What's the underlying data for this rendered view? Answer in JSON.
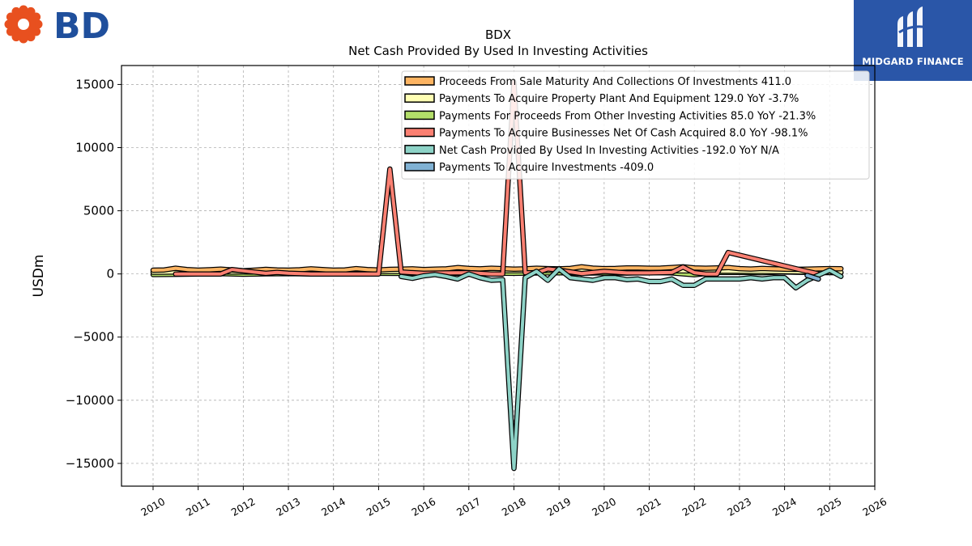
{
  "logos": {
    "left_text": "BD",
    "left_color": "#1f4f9c",
    "left_mark_color": "#e8501f",
    "right_text": "MIDGARD FINANCE",
    "right_bg": "#2a56a8"
  },
  "chart_data": {
    "type": "line",
    "title": "BDX",
    "subtitle": "Net Cash Provided By Used In Investing Activities",
    "xlabel": "",
    "ylabel": "USDm",
    "xlim": [
      2009.3,
      2026.0
    ],
    "ylim": [
      -16800,
      16500
    ],
    "x_ticks": [
      "2010",
      "2011",
      "2012",
      "2013",
      "2014",
      "2015",
      "2016",
      "2017",
      "2018",
      "2019",
      "2020",
      "2021",
      "2022",
      "2023",
      "2024",
      "2025",
      "2026"
    ],
    "y_ticks": [
      15000,
      10000,
      5000,
      0,
      -5000,
      -10000,
      -15000
    ],
    "y_tick_labels": [
      "15000",
      "10000",
      "5000",
      "0",
      "−5000",
      "−10000",
      "−15000"
    ],
    "grid": true,
    "legend_position": "top-right",
    "series": [
      {
        "name": "Proceeds From Sale Maturity And Collections Of Investments",
        "legend": "Proceeds From Sale Maturity And Collections Of Investments  411.0",
        "color": "#fdb462",
        "x": [
          2010.0,
          2010.25,
          2010.5,
          2010.75,
          2011.0,
          2011.25,
          2011.5,
          2011.75,
          2012.0,
          2012.25,
          2012.5,
          2012.75,
          2013.0,
          2013.25,
          2013.5,
          2013.75,
          2014.0,
          2014.25,
          2014.5,
          2014.75,
          2015.0,
          2015.25,
          2015.5,
          2015.75,
          2016.0,
          2016.25,
          2016.5,
          2016.75,
          2017.0,
          2017.25,
          2017.5,
          2017.75,
          2018.0,
          2018.25,
          2018.5,
          2018.75,
          2019.0,
          2019.25,
          2019.5,
          2019.75,
          2020.0,
          2020.25,
          2020.5,
          2020.75,
          2021.0,
          2021.25,
          2021.5,
          2021.75,
          2022.0,
          2022.25,
          2022.5,
          2022.75,
          2023.0,
          2023.25,
          2023.5,
          2023.75,
          2024.0,
          2024.25,
          2024.5,
          2024.75,
          2025.0,
          2025.25
        ],
        "y": [
          300,
          320,
          450,
          350,
          300,
          330,
          380,
          320,
          250,
          300,
          360,
          310,
          300,
          330,
          400,
          340,
          300,
          320,
          420,
          350,
          320,
          360,
          380,
          400,
          350,
          380,
          400,
          500,
          430,
          400,
          450,
          420,
          380,
          400,
          450,
          420,
          400,
          430,
          560,
          460,
          420,
          430,
          470,
          480,
          450,
          460,
          500,
          560,
          480,
          450,
          470,
          510,
          420,
          390,
          430,
          400,
          380,
          360,
          380,
          400,
          420,
          411
        ]
      },
      {
        "name": "Payments To Acquire Property Plant And Equipment",
        "legend": "Payments To Acquire Property Plant And Equipment  129.0 YoY -3.7%",
        "color": "#ffffb3",
        "x": [
          2010.0,
          2010.5,
          2011.0,
          2011.5,
          2012.0,
          2012.5,
          2013.0,
          2013.5,
          2014.0,
          2014.5,
          2015.0,
          2015.5,
          2016.0,
          2016.5,
          2017.0,
          2017.5,
          2018.0,
          2018.5,
          2019.0,
          2019.5,
          2020.0,
          2020.5,
          2021.0,
          2021.5,
          2022.0,
          2022.5,
          2023.0,
          2023.5,
          2024.0,
          2024.5,
          2025.0,
          2025.25
        ],
        "y": [
          140,
          150,
          150,
          160,
          150,
          160,
          170,
          160,
          160,
          170,
          180,
          200,
          210,
          230,
          240,
          250,
          260,
          270,
          280,
          290,
          300,
          270,
          260,
          250,
          240,
          230,
          220,
          200,
          180,
          160,
          140,
          129
        ]
      },
      {
        "name": "Payments For Proceeds From Other Investing Activities",
        "legend": "Payments For Proceeds From Other Investing Activities  85.0 YoY -21.3%",
        "color": "#b3de69",
        "x": [
          2010.0,
          2010.25,
          2010.5,
          2011.0,
          2011.5,
          2012.0,
          2012.5,
          2013.0,
          2013.5,
          2014.0,
          2014.5,
          2015.0,
          2015.5,
          2016.0,
          2016.5,
          2017.0,
          2017.5,
          2018.0,
          2018.5,
          2019.0,
          2019.5,
          2020.0,
          2020.5,
          2021.0,
          2021.5,
          2022.0,
          2022.5,
          2023.0,
          2023.5,
          2024.0,
          2024.5,
          2025.0,
          2025.25
        ],
        "y": [
          -50,
          -40,
          -30,
          0,
          20,
          -20,
          10,
          30,
          0,
          10,
          20,
          50,
          40,
          30,
          60,
          40,
          70,
          50,
          80,
          100,
          60,
          90,
          70,
          110,
          80,
          -60,
          120,
          130,
          100,
          150,
          120,
          108,
          85
        ]
      },
      {
        "name": "Payments To Acquire Businesses Net Of Cash Acquired",
        "legend": "Payments To Acquire Businesses Net Of Cash Acquired  8.0 YoY -98.1%",
        "color": "#fb8072",
        "x": [
          2010.5,
          2011.0,
          2011.5,
          2011.75,
          2012.0,
          2012.5,
          2012.75,
          2013.0,
          2013.5,
          2014.0,
          2014.5,
          2014.75,
          2015.0,
          2015.25,
          2015.5,
          2016.0,
          2016.5,
          2017.0,
          2017.5,
          2017.75,
          2018.0,
          2018.25,
          2018.5,
          2018.75,
          2019.0,
          2019.5,
          2020.0,
          2020.5,
          2021.0,
          2021.5,
          2021.75,
          2022.0,
          2022.25,
          2022.5,
          2022.75,
          2024.5,
          2024.75
        ],
        "y": [
          0,
          0,
          0,
          350,
          250,
          50,
          120,
          60,
          0,
          0,
          0,
          0,
          0,
          8300,
          150,
          50,
          80,
          100,
          0,
          0,
          15200,
          100,
          80,
          400,
          300,
          30,
          200,
          80,
          80,
          120,
          550,
          100,
          0,
          0,
          1700,
          200,
          8
        ]
      },
      {
        "name": "Net Cash Provided By Used In Investing Activities",
        "legend": "Net Cash Provided By Used In Investing Activities  -192.0 YoY N/A",
        "color": "#8dd3c7",
        "x": [
          2015.5,
          2015.75,
          2016.0,
          2016.25,
          2016.5,
          2016.75,
          2017.0,
          2017.25,
          2017.5,
          2017.75,
          2018.0,
          2018.25,
          2018.5,
          2018.75,
          2019.0,
          2019.25,
          2019.5,
          2019.75,
          2020.0,
          2020.25,
          2020.5,
          2020.75,
          2021.0,
          2021.25,
          2021.5,
          2021.75,
          2022.0,
          2022.25,
          2022.5,
          2022.75,
          2023.0,
          2023.25,
          2023.5,
          2023.75,
          2024.0,
          2024.25,
          2024.5,
          2024.75,
          2025.0,
          2025.25
        ],
        "y": [
          -200,
          -350,
          -150,
          -50,
          -200,
          -400,
          0,
          -300,
          -500,
          -450,
          -15400,
          -300,
          200,
          -500,
          400,
          -300,
          -400,
          -500,
          -300,
          -300,
          -450,
          -400,
          -600,
          -600,
          -400,
          -900,
          -900,
          -400,
          -400,
          -400,
          -400,
          -300,
          -400,
          -300,
          -300,
          -1100,
          -500,
          -100,
          300,
          -192
        ]
      },
      {
        "name": "Payments To Acquire Investments",
        "legend": "Payments To Acquire Investments  -409.0",
        "color": "#80b1d3",
        "x": [
          2024.5,
          2024.75
        ],
        "y": [
          -120,
          -409
        ]
      }
    ]
  }
}
